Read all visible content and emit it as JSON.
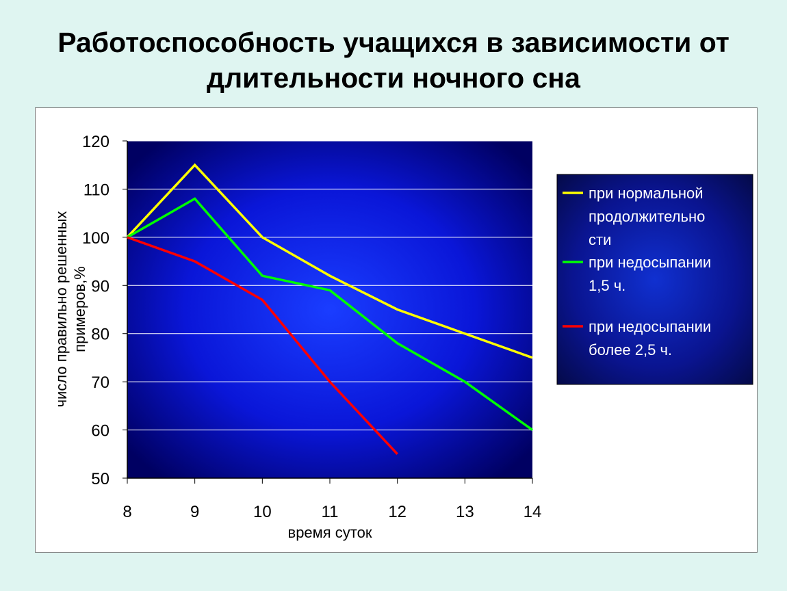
{
  "slide": {
    "title_line1": "Работоспособность учащихся в зависимости от",
    "title_line2": "длительности ночного сна"
  },
  "chart_data": {
    "type": "line",
    "title": "",
    "xlabel": "время суток",
    "ylabel_line1": "число правильно решенных",
    "ylabel_line2": "примеров,%",
    "x": [
      8,
      9,
      10,
      11,
      12,
      13,
      14
    ],
    "xlim": [
      8,
      14
    ],
    "ylim": [
      50,
      120
    ],
    "yticks": [
      50,
      60,
      70,
      80,
      90,
      100,
      110,
      120
    ],
    "grid": true,
    "legend_position": "right",
    "series": [
      {
        "key": "normal",
        "color": "#ffff00",
        "name_lines": [
          "при нормальной",
          "продолжительно",
          "сти"
        ],
        "values": [
          100,
          115,
          100,
          92,
          85,
          80,
          75
        ]
      },
      {
        "key": "short15",
        "color": "#00ff00",
        "name_lines": [
          "при недосыпании",
          "1,5 ч."
        ],
        "values": [
          100,
          108,
          92,
          89,
          78,
          70,
          60
        ]
      },
      {
        "key": "short25",
        "color": "#ff0000",
        "name_lines": [
          "при недосыпании",
          "более 2,5 ч."
        ],
        "values": [
          100,
          95,
          87,
          70,
          55,
          null,
          null
        ]
      }
    ],
    "plot_background": "#0000ff",
    "legend_background": "#000080"
  }
}
